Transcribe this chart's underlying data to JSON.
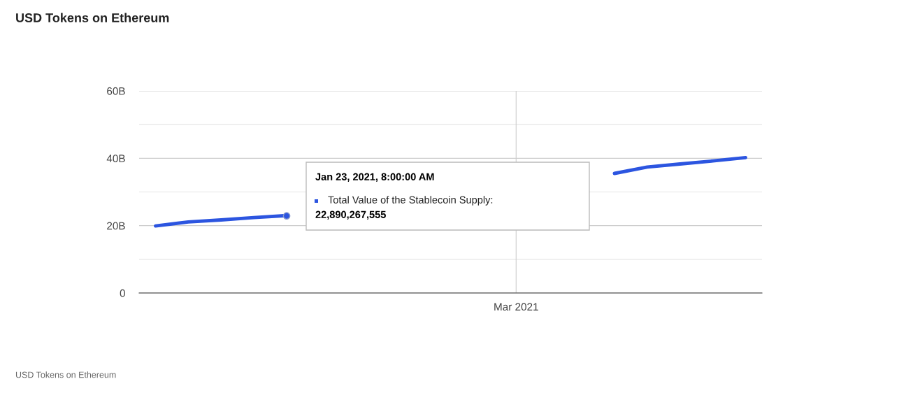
{
  "chart_data": {
    "type": "line",
    "title": "USD Tokens on Ethereum",
    "categories": [
      null,
      null,
      null,
      null,
      null,
      null,
      null,
      null,
      null,
      null,
      null,
      "Mar 2021",
      null,
      null,
      null,
      null,
      null,
      null,
      null
    ],
    "series": [
      {
        "color": "#2c55e0",
        "values": [
          19.9,
          21.1,
          21.7,
          22.4,
          23.0,
          null,
          null,
          null,
          null,
          null,
          null,
          null,
          null,
          null,
          35.5,
          37.4,
          38.3,
          39.2,
          40.2
        ]
      },
      {
        "name": "Total Value of the Stablecoin Supply:",
        "type": "scatter",
        "marker": "circle",
        "color": "#2c55e0",
        "values": [
          null,
          null,
          null,
          null,
          22.9,
          null,
          null,
          null,
          null,
          null,
          null,
          null,
          null,
          null,
          null,
          null,
          null,
          null,
          null
        ]
      }
    ],
    "ylim": [
      0,
      60
    ],
    "yticks": [
      {
        "value": 0,
        "label": "0"
      },
      {
        "value": 10,
        "label": null
      },
      {
        "value": 20,
        "label": "20B"
      },
      {
        "value": 30,
        "label": null
      },
      {
        "value": 40,
        "label": "40B"
      },
      {
        "value": 50,
        "label": null
      },
      {
        "value": 60,
        "label": "60B"
      }
    ],
    "grid": true,
    "legend": "center",
    "marker": "none",
    "line_style": "solid",
    "annotations": [
      "Jan 23, 2021, 8:00:00 AM",
      "22,890,267,555",
      "USD Tokens on Ethereum"
    ]
  }
}
